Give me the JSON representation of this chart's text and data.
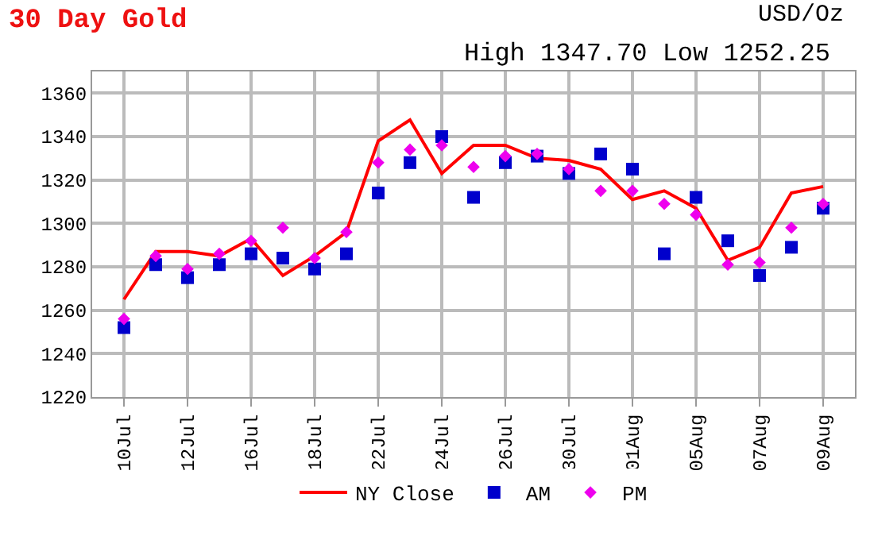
{
  "chart_data": {
    "type": "line",
    "title": "30 Day Gold",
    "subtitle": "High 1347.70 Low 1252.25",
    "annotations": [
      "USD/Oz"
    ],
    "categories": [
      "10Jul",
      null,
      "12Jul",
      null,
      "16Jul",
      null,
      "18Jul",
      null,
      "22Jul",
      null,
      "24Jul",
      null,
      "26Jul",
      null,
      "30Jul",
      null,
      "01Aug",
      null,
      "05Aug",
      null,
      "07Aug",
      null,
      "09Aug"
    ],
    "series": [
      {
        "name": "NY Close",
        "color": "#ff0000",
        "marker": "none",
        "values": [
          1265,
          1287,
          1287,
          1285,
          1293,
          1276,
          1285,
          1296,
          1338,
          1347.7,
          1323,
          1336,
          1336,
          1330,
          1329,
          1325,
          1311,
          1315,
          1307,
          1283,
          1289,
          1314,
          1317
        ]
      },
      {
        "name": "AM",
        "type": "scatter",
        "color": "#0000cc",
        "marker": "square",
        "values": [
          1252,
          1281,
          1275,
          1281,
          1286,
          1284,
          1279,
          1286,
          1314,
          1328,
          1340,
          1312,
          1328,
          1331,
          1323,
          1332,
          1325,
          1286,
          1312,
          1292,
          1276,
          1289,
          1307
        ]
      },
      {
        "name": "PM",
        "type": "scatter",
        "color": "#ee00ee",
        "marker": "diamond",
        "values": [
          1256,
          1285,
          1279,
          1286,
          1292,
          1298,
          1284,
          1296,
          1328,
          1334,
          1336,
          1326,
          1331,
          1332,
          1325,
          1315,
          1315,
          1309,
          1304,
          1281,
          1282,
          1298,
          1309
        ]
      }
    ],
    "ylim": [
      1220,
      1370
    ],
    "yticks": [
      1220,
      1240,
      1260,
      1280,
      1300,
      1320,
      1340,
      1360
    ],
    "grid": true,
    "legend": "bottom"
  }
}
